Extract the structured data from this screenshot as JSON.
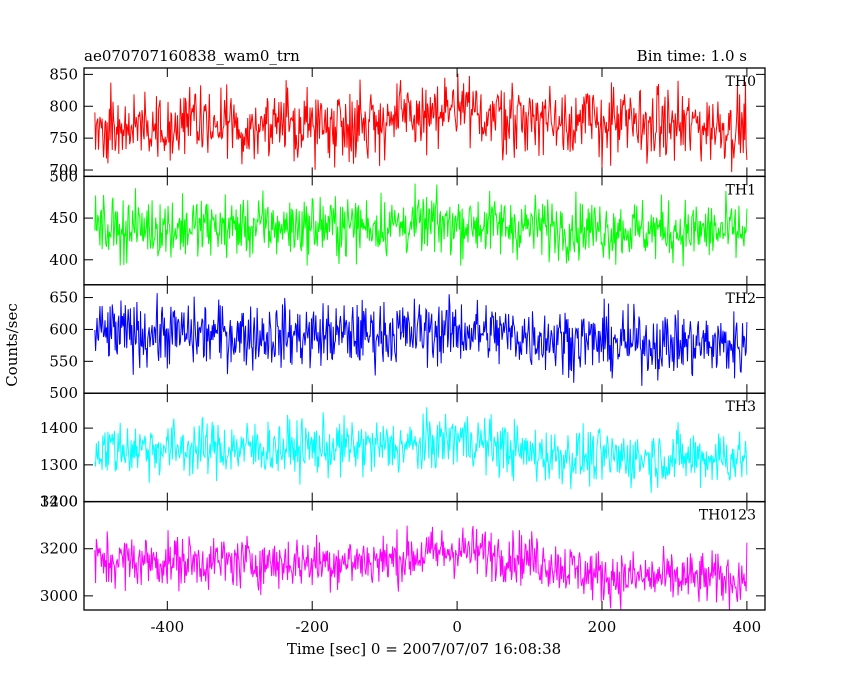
{
  "title_left": "ae070707160838_wam0_trn",
  "title_right": "Bin time: 1.0 s",
  "xlabel": "Time [sec] 0 = 2007/07/07 16:08:38",
  "ylabel": "Counts/sec",
  "chart_data": {
    "type": "line",
    "title": "ae070707160838_wam0_trn",
    "subtitle": "Bin time: 1.0 s",
    "xlabel": "Time [sec] 0 = 2007/07/07 16:08:38",
    "ylabel": "Counts/sec",
    "xlim": [
      -515,
      425
    ],
    "x_ticks": [
      -400,
      -200,
      0,
      200,
      400
    ],
    "x_start": -500,
    "x_end": 400,
    "x_step": 1,
    "grid": false,
    "panels": [
      {
        "name": "TH0",
        "color": "#ff0000",
        "ylim": [
          690,
          860
        ],
        "y_ticks": [
          700,
          750,
          800,
          850
        ],
        "trend": [
          [
            -500,
            768
          ],
          [
            -250,
            770
          ],
          [
            -100,
            778
          ],
          [
            0,
            790
          ],
          [
            100,
            782
          ],
          [
            250,
            772
          ],
          [
            400,
            768
          ]
        ],
        "noise": 28
      },
      {
        "name": "TH1",
        "color": "#00ff00",
        "ylim": [
          370,
          500
        ],
        "y_ticks": [
          400,
          450,
          500
        ],
        "trend": [
          [
            -500,
            438
          ],
          [
            -200,
            440
          ],
          [
            0,
            443
          ],
          [
            200,
            437
          ],
          [
            400,
            433
          ]
        ],
        "noise": 18
      },
      {
        "name": "TH2",
        "color": "#0000ff",
        "ylim": [
          500,
          670
        ],
        "y_ticks": [
          500,
          550,
          600,
          650
        ],
        "trend": [
          [
            -500,
            595
          ],
          [
            -200,
            590
          ],
          [
            0,
            598
          ],
          [
            200,
            580
          ],
          [
            400,
            575
          ]
        ],
        "noise": 25
      },
      {
        "name": "TH3",
        "color": "#00ffff",
        "ylim": [
          1200,
          1495
        ],
        "y_ticks": [
          1200,
          1300,
          1400
        ],
        "trend": [
          [
            -500,
            1345
          ],
          [
            -250,
            1345
          ],
          [
            -50,
            1350
          ],
          [
            0,
            1375
          ],
          [
            100,
            1330
          ],
          [
            200,
            1320
          ],
          [
            400,
            1320
          ]
        ],
        "noise": 38
      },
      {
        "name": "TH0123",
        "color": "#ff00ff",
        "ylim": [
          2940,
          3400
        ],
        "y_ticks": [
          3000,
          3200,
          3400
        ],
        "trend": [
          [
            -500,
            3150
          ],
          [
            -250,
            3140
          ],
          [
            -100,
            3150
          ],
          [
            0,
            3195
          ],
          [
            100,
            3160
          ],
          [
            200,
            3080
          ],
          [
            400,
            3070
          ]
        ],
        "noise": 55
      }
    ]
  }
}
